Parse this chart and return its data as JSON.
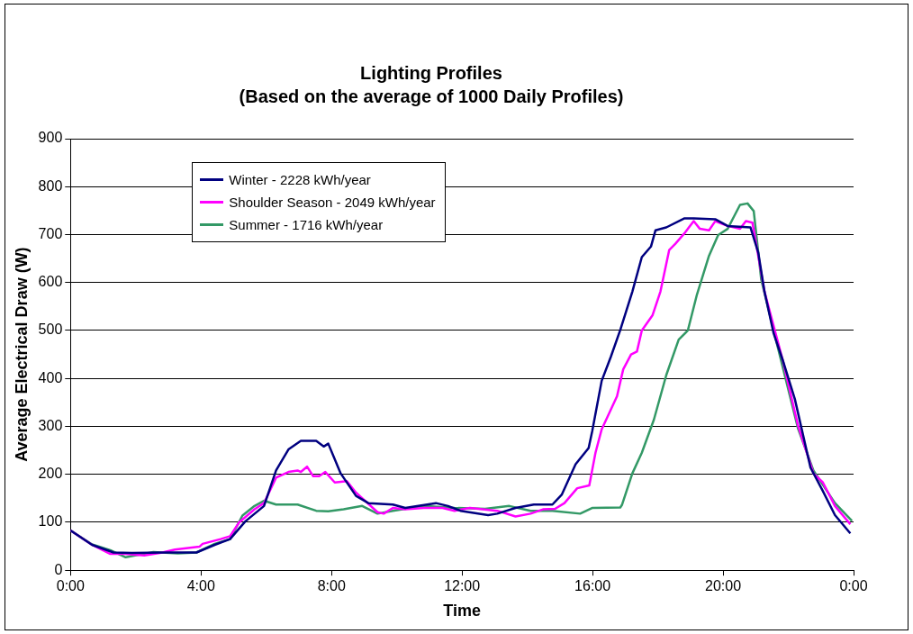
{
  "chart_data": {
    "type": "line",
    "title": "Lighting Profiles",
    "subtitle": "(Based on the average of 1000 Daily Profiles)",
    "xlabel": "Time",
    "ylabel": "Average Electrical Draw (W)",
    "xlim": [
      0,
      24
    ],
    "xticks": [
      {
        "value": 0,
        "label": "0:00"
      },
      {
        "value": 4,
        "label": "4:00"
      },
      {
        "value": 8,
        "label": "8:00"
      },
      {
        "value": 12,
        "label": "12:00"
      },
      {
        "value": 16,
        "label": "16:00"
      },
      {
        "value": 20,
        "label": "20:00"
      },
      {
        "value": 24,
        "label": "0:00"
      }
    ],
    "ylim": [
      0,
      900
    ],
    "yticks": [
      0,
      100,
      200,
      300,
      400,
      500,
      600,
      700,
      800,
      900
    ],
    "grid": "y",
    "legend": "top left",
    "marker": "none",
    "line_style": "solid",
    "series": [
      {
        "name": "Winter - 2228 kWh/year",
        "color": "#000080",
        "x": [
          0,
          0.66,
          1.32,
          1.88,
          2.92,
          3.86,
          4.42,
          4.89,
          5.36,
          5.93,
          6.3,
          6.68,
          7.06,
          7.53,
          7.76,
          7.9,
          8.28,
          8.75,
          9.13,
          9.88,
          10.26,
          11.2,
          11.57,
          11.95,
          12.8,
          13.08,
          13.64,
          14.2,
          14.77,
          15.06,
          15.48,
          15.88,
          15.99,
          16.28,
          16.56,
          16.85,
          17.22,
          17.51,
          17.79,
          17.93,
          18.26,
          18.82,
          19.1,
          19.76,
          20.14,
          20.84,
          21.08,
          21.27,
          21.55,
          21.83,
          22.2,
          22.68,
          23.06,
          23.43,
          23.9
        ],
        "values": [
          83,
          53,
          37,
          36,
          37,
          37,
          53,
          65,
          102,
          134,
          208,
          252,
          270,
          270,
          258,
          264,
          202,
          155,
          140,
          137,
          130,
          140,
          134,
          124,
          115,
          118,
          130,
          137,
          137,
          158,
          221,
          255,
          290,
          395,
          445,
          501,
          581,
          653,
          675,
          709,
          715,
          734,
          734,
          732,
          718,
          715,
          662,
          581,
          494,
          438,
          357,
          214,
          165,
          115,
          77
        ]
      },
      {
        "name": "Shoulder Season - 2049 kWh/year",
        "color": "#ff00ff",
        "x": [
          0,
          0.66,
          1.22,
          1.69,
          2.26,
          2.82,
          3.2,
          3.95,
          4.05,
          4.6,
          4.89,
          5.17,
          5.64,
          5.93,
          6.3,
          6.68,
          6.96,
          7.06,
          7.25,
          7.44,
          7.62,
          7.81,
          8.1,
          8.47,
          8.75,
          9.41,
          9.6,
          9.88,
          10.26,
          10.83,
          11.4,
          11.77,
          12.24,
          13.08,
          13.64,
          14.1,
          14.48,
          14.85,
          15.14,
          15.53,
          15.9,
          16.09,
          16.28,
          16.75,
          16.94,
          17.18,
          17.36,
          17.51,
          17.84,
          18.08,
          18.35,
          18.54,
          18.82,
          19.1,
          19.29,
          19.57,
          19.76,
          20.14,
          20.52,
          20.7,
          20.9,
          21.27,
          21.83,
          22.3,
          22.77,
          23.06,
          23.43,
          23.9
        ],
        "values": [
          83,
          53,
          34,
          34,
          31,
          37,
          43,
          49,
          55,
          65,
          71,
          100,
          127,
          140,
          193,
          205,
          208,
          205,
          216,
          196,
          196,
          205,
          183,
          186,
          162,
          121,
          118,
          130,
          127,
          130,
          130,
          124,
          130,
          124,
          112,
          118,
          127,
          128,
          140,
          171,
          177,
          245,
          294,
          363,
          419,
          450,
          456,
          500,
          532,
          581,
          668,
          681,
          703,
          728,
          712,
          709,
          728,
          718,
          712,
          728,
          725,
          581,
          438,
          301,
          202,
          183,
          134,
          96
        ]
      },
      {
        "name": "Summer - 1716 kWh/year",
        "color": "#339966",
        "x": [
          0,
          0.66,
          1.22,
          1.69,
          2.16,
          2.54,
          3.29,
          3.86,
          4.42,
          4.89,
          5.27,
          5.64,
          5.93,
          6.3,
          6.96,
          7.53,
          7.9,
          8.37,
          8.94,
          9.41,
          9.88,
          10.83,
          11.77,
          12.71,
          13.45,
          14.1,
          14.77,
          15.62,
          16.0,
          16.85,
          16.9,
          17.22,
          17.51,
          17.88,
          18.26,
          18.64,
          18.92,
          19.2,
          19.57,
          19.85,
          20.14,
          20.33,
          20.52,
          20.75,
          20.94,
          21.17,
          21.64,
          22.3,
          22.77,
          23.43,
          23.95
        ],
        "values": [
          83,
          54,
          42,
          27,
          33,
          38,
          35,
          37,
          55,
          65,
          114,
          134,
          145,
          137,
          137,
          124,
          123,
          127,
          134,
          118,
          124,
          134,
          130,
          128,
          134,
          124,
          124,
          118,
          130,
          131,
          136,
          202,
          245,
          314,
          407,
          481,
          500,
          575,
          656,
          699,
          712,
          737,
          762,
          765,
          749,
          606,
          475,
          295,
          208,
          140,
          103
        ]
      }
    ]
  }
}
